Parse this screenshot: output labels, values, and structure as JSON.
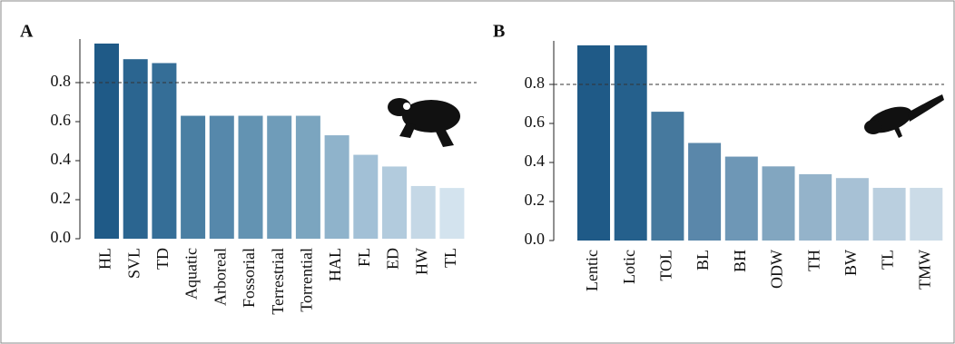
{
  "chart_data": [
    {
      "type": "bar",
      "title": "A",
      "categories": [
        "HL",
        "SVL",
        "TD",
        "Aquatic",
        "Arboreal",
        "Fossorial",
        "Terrestrial",
        "Torrential",
        "HAL",
        "FL",
        "ED",
        "HW",
        "TL"
      ],
      "values": [
        1.0,
        0.92,
        0.9,
        0.63,
        0.63,
        0.63,
        0.63,
        0.63,
        0.53,
        0.43,
        0.37,
        0.27,
        0.26
      ],
      "colors": [
        "#1f5a87",
        "#2b6590",
        "#356e97",
        "#4a7fa3",
        "#5688ab",
        "#6393b2",
        "#6f9cb9",
        "#7ba5bf",
        "#8fb3cb",
        "#a2c0d6",
        "#b2cbdd",
        "#c5d8e6",
        "#d3e3ee"
      ],
      "ylim": [
        0,
        1.0
      ],
      "yticks": [
        {
          "value": 0,
          "label": "0.0"
        },
        0.2,
        0.4,
        0.6,
        0.8
      ],
      "reference_line": 0.8
    },
    {
      "type": "bar",
      "title": "B",
      "categories": [
        "Lentic",
        "Lotic",
        "TOL",
        "BL",
        "BH",
        "ODW",
        "TH",
        "BW",
        "TL",
        "TMW"
      ],
      "values": [
        1.0,
        1.0,
        0.66,
        0.5,
        0.43,
        0.38,
        0.34,
        0.32,
        0.27,
        0.27
      ],
      "colors": [
        "#1f5a87",
        "#25608c",
        "#46799e",
        "#5a87aa",
        "#6e97b6",
        "#82a6c0",
        "#94b3ca",
        "#a7c1d5",
        "#bacfdf",
        "#cbdbe7"
      ],
      "ylim": [
        0,
        1.0
      ],
      "yticks": [
        {
          "value": 0,
          "label": "0.0"
        },
        0.2,
        0.4,
        0.6,
        0.8
      ],
      "reference_line": 0.8
    }
  ]
}
